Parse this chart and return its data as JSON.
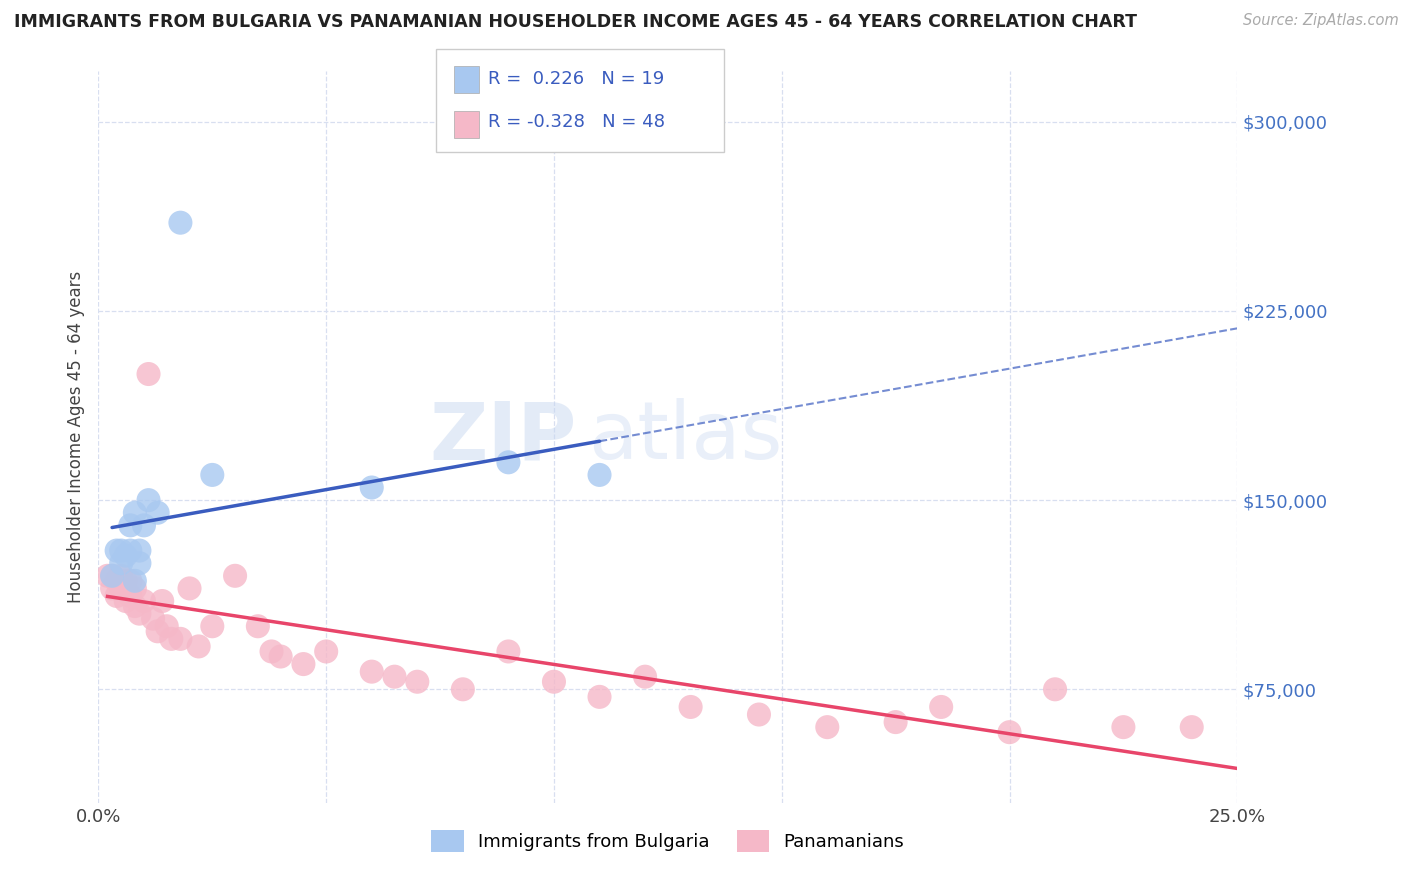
{
  "title": "IMMIGRANTS FROM BULGARIA VS PANAMANIAN HOUSEHOLDER INCOME AGES 45 - 64 YEARS CORRELATION CHART",
  "source": "Source: ZipAtlas.com",
  "ylabel": "Householder Income Ages 45 - 64 years",
  "xlim": [
    0.0,
    0.25
  ],
  "ylim": [
    30000,
    320000
  ],
  "xticks": [
    0.0,
    0.05,
    0.1,
    0.15,
    0.2,
    0.25
  ],
  "ytick_labels": [
    "$75,000",
    "$150,000",
    "$225,000",
    "$300,000"
  ],
  "ytick_vals": [
    75000,
    150000,
    225000,
    300000
  ],
  "legend_r_blue": "0.226",
  "legend_n_blue": "19",
  "legend_r_pink": "-0.328",
  "legend_n_pink": "48",
  "blue_color": "#a8c8f0",
  "pink_color": "#f5b8c8",
  "line_blue": "#3a5cbf",
  "line_pink": "#e8456a",
  "bg_color": "#ffffff",
  "grid_color": "#d8dff0",
  "blue_scatter_x": [
    0.003,
    0.004,
    0.005,
    0.005,
    0.006,
    0.007,
    0.007,
    0.008,
    0.008,
    0.009,
    0.009,
    0.01,
    0.011,
    0.013,
    0.018,
    0.025,
    0.06,
    0.09,
    0.11
  ],
  "blue_scatter_y": [
    120000,
    130000,
    130000,
    125000,
    128000,
    130000,
    140000,
    118000,
    145000,
    130000,
    125000,
    140000,
    150000,
    145000,
    260000,
    160000,
    155000,
    165000,
    160000
  ],
  "pink_scatter_x": [
    0.002,
    0.003,
    0.003,
    0.004,
    0.004,
    0.005,
    0.005,
    0.006,
    0.006,
    0.007,
    0.007,
    0.008,
    0.008,
    0.009,
    0.01,
    0.011,
    0.012,
    0.013,
    0.014,
    0.015,
    0.016,
    0.018,
    0.02,
    0.022,
    0.025,
    0.03,
    0.035,
    0.038,
    0.04,
    0.045,
    0.05,
    0.06,
    0.065,
    0.07,
    0.08,
    0.09,
    0.1,
    0.11,
    0.12,
    0.13,
    0.145,
    0.16,
    0.175,
    0.185,
    0.2,
    0.21,
    0.225,
    0.24
  ],
  "pink_scatter_y": [
    120000,
    120000,
    115000,
    118000,
    112000,
    115000,
    120000,
    110000,
    118000,
    112000,
    118000,
    108000,
    115000,
    105000,
    110000,
    200000,
    103000,
    98000,
    110000,
    100000,
    95000,
    95000,
    115000,
    92000,
    100000,
    120000,
    100000,
    90000,
    88000,
    85000,
    90000,
    82000,
    80000,
    78000,
    75000,
    90000,
    78000,
    72000,
    80000,
    68000,
    65000,
    60000,
    62000,
    68000,
    58000,
    75000,
    60000,
    60000
  ]
}
